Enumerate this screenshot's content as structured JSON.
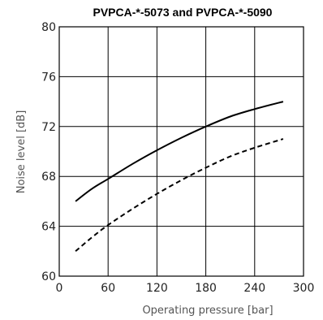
{
  "chart_data": {
    "type": "line",
    "title": "PVPCA-*-5073 and PVPCA-*-5090",
    "xlabel": "Operating pressure  [bar]",
    "ylabel": "Noise level [dB]",
    "xlim": [
      0,
      300
    ],
    "ylim": [
      60,
      80
    ],
    "x_ticks": [
      0,
      60,
      120,
      180,
      240,
      300
    ],
    "y_ticks": [
      60,
      64,
      68,
      72,
      76,
      80
    ],
    "grid": true,
    "series": [
      {
        "line_style": "solid",
        "x": [
          20,
          40,
          60,
          90,
          120,
          150,
          180,
          210,
          240,
          275
        ],
        "values": [
          66,
          67,
          67.8,
          69,
          70.1,
          71.1,
          72,
          72.8,
          73.4,
          74
        ]
      },
      {
        "line_style": "dashed",
        "x": [
          20,
          40,
          60,
          90,
          120,
          150,
          180,
          210,
          240,
          275
        ],
        "values": [
          62,
          63.1,
          64.1,
          65.4,
          66.6,
          67.7,
          68.7,
          69.6,
          70.3,
          71
        ]
      }
    ]
  }
}
